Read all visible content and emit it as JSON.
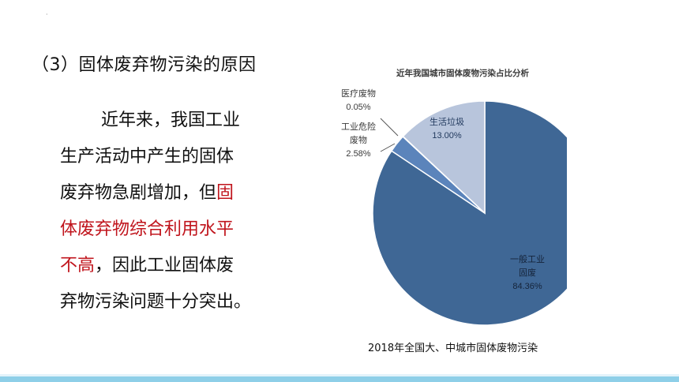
{
  "slide": {
    "marker": "·",
    "heading": "（3）固体废弃物污染的原因",
    "paragraph": {
      "lines_plain": [
        "近年来，我国工业",
        "生产活动中产生的固体",
        "废弃物急剧增加，但"
      ],
      "highlight_1": "固",
      "highlight_lines": [
        "体废弃物综合利用水平",
        "不高"
      ],
      "tail_1": "，因此工业固体废",
      "tail_2": "弃物污染问题十分突出。"
    },
    "caption": "2018年全国大、中城市固体废物污染"
  },
  "chart_data": {
    "type": "pie",
    "title": "近年我国城市固体废物污染占比分析",
    "slices": [
      {
        "label_lines": [
          "一般工业",
          "固废"
        ],
        "value": 84.36,
        "value_text": "84.36%",
        "color": "#3f6795"
      },
      {
        "label_lines": [
          "工业危险",
          "废物"
        ],
        "value": 2.58,
        "value_text": "2.58%",
        "color": "#5b84bb"
      },
      {
        "label_lines": [
          "医疗废物"
        ],
        "value": 0.05,
        "value_text": "0.05%",
        "color": "#2f4f7a"
      },
      {
        "label_lines": [
          "生活垃圾"
        ],
        "value": 13.0,
        "value_text": "13.00%",
        "color": "#b8c5dc"
      }
    ]
  },
  "colors": {
    "highlight": "#c0141c",
    "bottom_bar": "#8ecfe8"
  }
}
